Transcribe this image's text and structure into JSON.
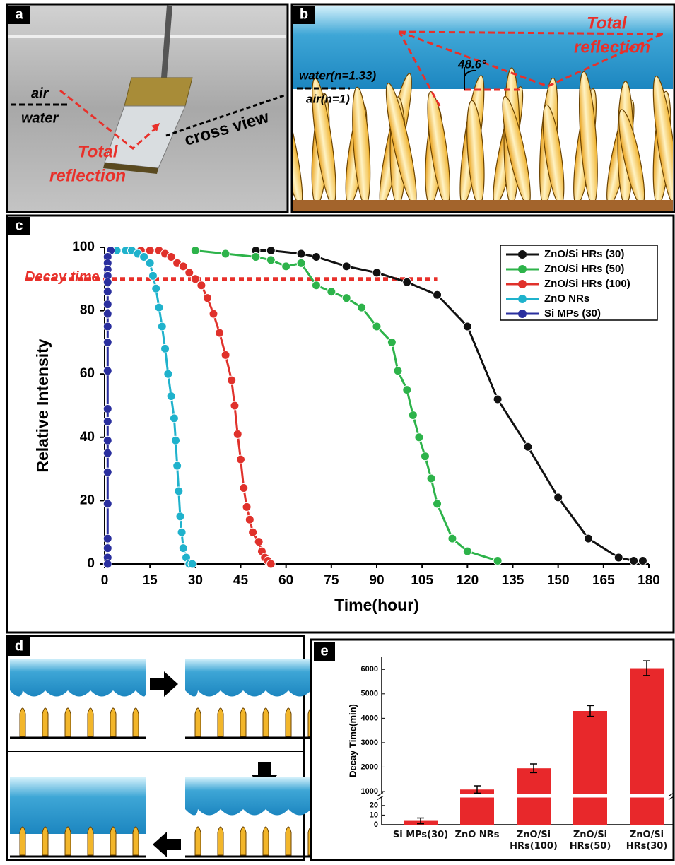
{
  "panels": {
    "a": {
      "label": "a",
      "air": "air",
      "water": "water",
      "total": "Total",
      "reflection": "reflection",
      "cross_view": "cross view"
    },
    "b": {
      "label": "b",
      "water": "water(n=1.33)",
      "air": "air(n=1)",
      "angle": "48.6°",
      "total": "Total",
      "reflection": "reflection"
    },
    "c": {
      "label": "c"
    },
    "d": {
      "label": "d"
    },
    "e": {
      "label": "e"
    }
  },
  "chart_data": [
    {
      "type": "line",
      "x_label": "Time(hour)",
      "y_label": "Relative Intensity",
      "xlim": [
        0,
        180
      ],
      "ylim": [
        0,
        100
      ],
      "xticks": [
        0,
        15,
        30,
        45,
        60,
        75,
        90,
        105,
        120,
        135,
        150,
        165,
        180
      ],
      "yticks": [
        0,
        20,
        40,
        60,
        80,
        100
      ],
      "grid": false,
      "legend": "upper right",
      "reference_line": {
        "label": "Decay time",
        "value": 90,
        "x_end": 110,
        "color": "#e8302a"
      },
      "series": [
        {
          "name": "ZnO/Si HRs (30)",
          "color": "#111111",
          "x": [
            50,
            55,
            65,
            70,
            80,
            90,
            100,
            110,
            120,
            130,
            140,
            150,
            160,
            170,
            175,
            178
          ],
          "values": [
            99,
            99,
            98,
            97,
            94,
            92,
            89,
            85,
            75,
            52,
            37,
            21,
            8,
            2,
            1,
            1
          ]
        },
        {
          "name": "ZnO/Si HRs (50)",
          "color": "#2db34a",
          "x": [
            30,
            40,
            50,
            55,
            60,
            65,
            70,
            75,
            80,
            85,
            90,
            95,
            97,
            100,
            102,
            104,
            106,
            108,
            110,
            115,
            120,
            130
          ],
          "values": [
            99,
            98,
            97,
            96,
            94,
            95,
            88,
            86,
            84,
            81,
            75,
            70,
            61,
            55,
            47,
            40,
            34,
            27,
            19,
            8,
            4,
            1
          ]
        },
        {
          "name": "ZnO/Si HRs (100)",
          "color": "#e0312b",
          "x": [
            12,
            15,
            18,
            20,
            22,
            24,
            26,
            28,
            30,
            32,
            34,
            36,
            38,
            40,
            42,
            43,
            44,
            45,
            46,
            47,
            48,
            49,
            51,
            52,
            53,
            54,
            55
          ],
          "values": [
            99,
            99,
            99,
            98,
            97,
            95,
            94,
            92,
            90,
            88,
            84,
            79,
            73,
            66,
            58,
            50,
            41,
            33,
            24,
            18,
            14,
            10,
            7,
            4,
            2,
            1,
            0
          ]
        },
        {
          "name": "ZnO NRs",
          "color": "#1fb2cc",
          "x": [
            2,
            4,
            7,
            9,
            11,
            13,
            15,
            16,
            17,
            18,
            19,
            20,
            21,
            22,
            23,
            23.5,
            24,
            24.5,
            25,
            25.5,
            26,
            27,
            28,
            29
          ],
          "values": [
            99,
            99,
            99,
            99,
            98,
            97,
            95,
            91,
            87,
            81,
            75,
            68,
            60,
            53,
            46,
            39,
            31,
            23,
            15,
            10,
            5,
            2,
            0,
            0
          ]
        },
        {
          "name": "Si MPs (30)",
          "color": "#2a2f9e",
          "x": [
            2,
            1,
            1,
            1,
            1,
            1,
            1,
            1,
            1,
            1,
            1,
            1,
            1,
            1,
            1,
            1,
            1,
            1,
            1,
            1,
            1,
            1
          ],
          "values": [
            99,
            97,
            95,
            93,
            91,
            89,
            86,
            82,
            79,
            75,
            70,
            61,
            49,
            45,
            39,
            35,
            29,
            19,
            8,
            5,
            2,
            0
          ]
        }
      ]
    },
    {
      "type": "bar",
      "y_label": "Decay Time(min)",
      "color": "#e8282b",
      "categories": [
        "Si MPs(30)",
        "ZnO NRs",
        "ZnO/Si HRs(100)",
        "ZnO/Si HRs(50)",
        "ZnO/Si HRs(30)"
      ],
      "values": [
        4,
        1080,
        1950,
        4300,
        6050
      ],
      "errors": [
        3,
        150,
        180,
        220,
        300
      ],
      "ylim": [
        0,
        6500
      ],
      "axis_break": [
        25,
        1000
      ],
      "yticks": [
        0,
        10,
        20,
        1000,
        2000,
        3000,
        4000,
        5000,
        6000
      ]
    }
  ]
}
